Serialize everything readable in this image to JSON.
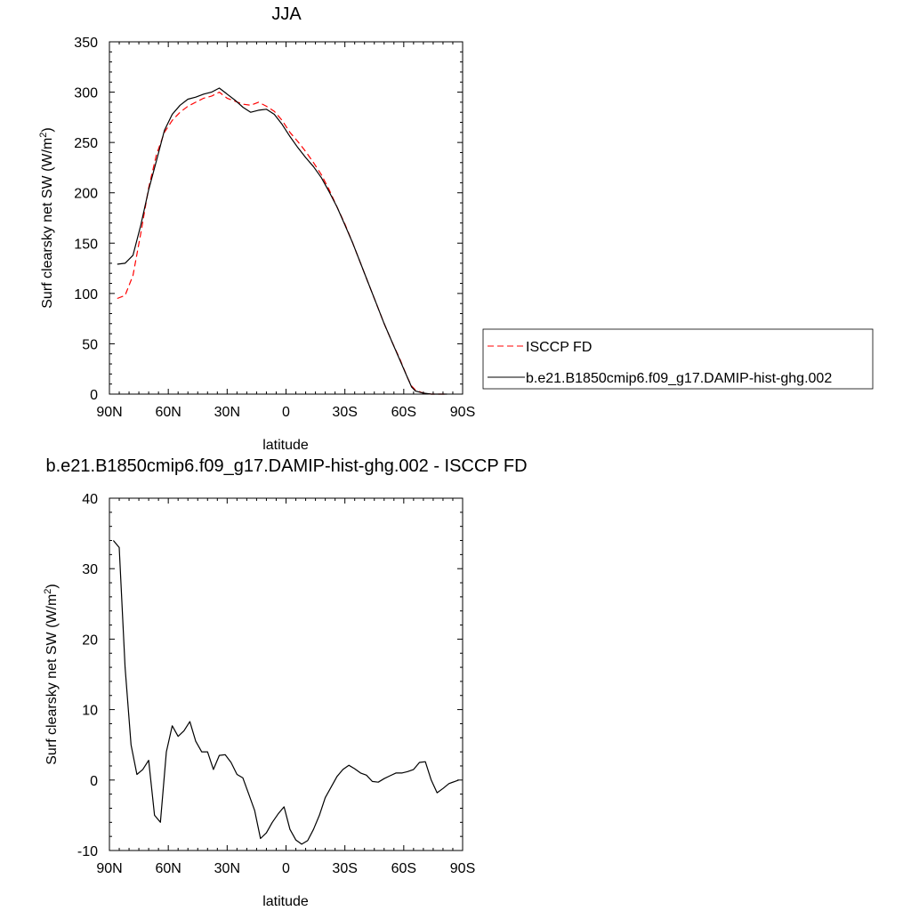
{
  "chart_data": [
    {
      "type": "line",
      "title": "JJA",
      "xlabel": "latitude",
      "ylabel": "Surf clearsky net SW (W/m",
      "ylabel_sup": "2",
      "ylabel_end": ")",
      "xlim": [
        90,
        -90
      ],
      "ylim": [
        0,
        350
      ],
      "x_ticks": [
        90,
        60,
        30,
        0,
        -30,
        -60,
        -90
      ],
      "x_tick_labels": [
        "90N",
        "60N",
        "30N",
        "0",
        "30S",
        "60S",
        "90S"
      ],
      "y_ticks": [
        0,
        50,
        100,
        150,
        200,
        250,
        300,
        350
      ],
      "y_tick_labels": [
        "0",
        "50",
        "100",
        "150",
        "200",
        "250",
        "300",
        "350"
      ],
      "legend_position": "right",
      "grid": false,
      "series": [
        {
          "name": "ISCCP FD",
          "color": "#ff0000",
          "dash": "dashed",
          "x": [
            86,
            82,
            78,
            74,
            70,
            66,
            62,
            58,
            54,
            50,
            46,
            42,
            38,
            34,
            30,
            26,
            22,
            18,
            14,
            10,
            6,
            2,
            -2,
            -6,
            -10,
            -14,
            -18,
            -22,
            -26,
            -30,
            -34,
            -38,
            -42,
            -46,
            -50,
            -54,
            -58,
            -62,
            -64,
            -66,
            -70,
            -74,
            -78,
            -82
          ],
          "y": [
            95,
            98,
            118,
            160,
            205,
            238,
            260,
            272,
            280,
            286,
            290,
            294,
            296,
            300,
            294,
            291,
            288,
            287,
            290,
            286,
            281,
            272,
            260,
            251,
            241,
            230,
            218,
            203,
            186,
            169,
            150,
            130,
            110,
            90,
            70,
            52,
            35,
            16,
            8,
            4,
            1,
            0,
            0,
            0
          ]
        },
        {
          "name": "b.e21.B1850cmip6.f09_g17.DAMIP-hist-ghg.002",
          "color": "#000000",
          "dash": "solid",
          "x": [
            86,
            82,
            78,
            74,
            70,
            66,
            62,
            58,
            54,
            50,
            46,
            42,
            38,
            34,
            30,
            26,
            22,
            18,
            14,
            10,
            6,
            2,
            -2,
            -6,
            -10,
            -14,
            -18,
            -22,
            -26,
            -30,
            -34,
            -38,
            -42,
            -46,
            -50,
            -54,
            -58,
            -62,
            -64,
            -66,
            -70,
            -74,
            -78,
            -82
          ],
          "y": [
            129,
            130,
            138,
            168,
            203,
            232,
            262,
            278,
            287,
            293,
            295,
            298,
            300,
            304,
            298,
            292,
            285,
            280,
            282,
            283,
            278,
            268,
            256,
            245,
            235,
            226,
            215,
            201,
            186,
            168,
            150,
            130,
            110,
            90,
            70,
            52,
            34,
            16,
            7,
            3,
            1,
            0,
            0,
            0
          ]
        }
      ]
    },
    {
      "type": "line",
      "title": "b.e21.B1850cmip6.f09_g17.DAMIP-hist-ghg.002 - ISCCP FD",
      "xlabel": "latitude",
      "ylabel": "Surf clearsky net SW (W/m",
      "ylabel_sup": "2",
      "ylabel_end": ")",
      "xlim": [
        90,
        -90
      ],
      "ylim": [
        -10,
        40
      ],
      "x_ticks": [
        90,
        60,
        30,
        0,
        -30,
        -60,
        -90
      ],
      "x_tick_labels": [
        "90N",
        "60N",
        "30N",
        "0",
        "30S",
        "60S",
        "90S"
      ],
      "y_ticks": [
        -10,
        0,
        10,
        20,
        30,
        40
      ],
      "y_tick_labels": [
        "-10",
        "0",
        "10",
        "20",
        "30",
        "40"
      ],
      "grid": false,
      "series": [
        {
          "color": "#000000",
          "dash": "solid",
          "x": [
            88,
            85,
            82,
            79,
            76,
            73,
            70,
            67,
            64,
            61,
            58,
            55,
            52,
            49,
            46,
            43,
            40,
            37,
            34,
            31,
            28,
            25,
            22,
            19,
            16,
            13,
            10,
            7,
            4,
            1,
            -2,
            -5,
            -8,
            -11,
            -14,
            -17,
            -20,
            -23,
            -26,
            -29,
            -32,
            -35,
            -38,
            -41,
            -44,
            -47,
            -50,
            -53,
            -56,
            -59,
            -62,
            -65,
            -68,
            -71,
            -74,
            -77,
            -80,
            -83,
            -86,
            -88
          ],
          "y": [
            34,
            33,
            16,
            5,
            0.8,
            1.5,
            2.8,
            -5,
            -6,
            4,
            7.7,
            6.2,
            7,
            8.3,
            5.5,
            4,
            4,
            1.5,
            3.5,
            3.6,
            2.5,
            0.8,
            0.3,
            -2,
            -4.3,
            -8.3,
            -7.5,
            -6,
            -4.8,
            -3.8,
            -7,
            -8.5,
            -9.1,
            -8.6,
            -7,
            -5,
            -2.5,
            -1,
            0.5,
            1.5,
            2.1,
            1.6,
            1,
            0.7,
            -0.2,
            -0.3,
            0.2,
            0.6,
            1,
            1,
            1.2,
            1.5,
            2.5,
            2.6,
            0,
            -1.8,
            -1.2,
            -0.5,
            -0.2,
            0
          ]
        }
      ]
    }
  ]
}
